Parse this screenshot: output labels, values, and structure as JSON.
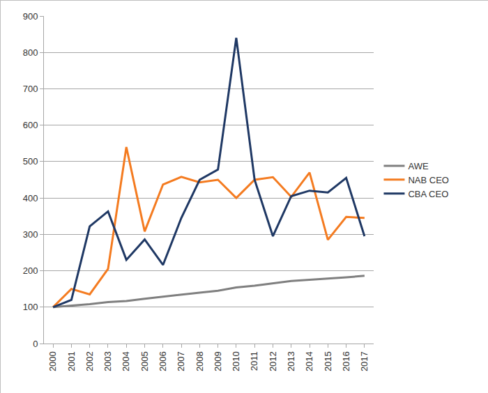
{
  "chart_data": {
    "type": "line",
    "categories": [
      "2000",
      "2001",
      "2002",
      "2003",
      "2004",
      "2005",
      "2006",
      "2007",
      "2008",
      "2009",
      "2010",
      "2011",
      "2012",
      "2013",
      "2014",
      "2015",
      "2016",
      "2017"
    ],
    "series": [
      {
        "name": "AWE",
        "color": "#7f7f7f",
        "values": [
          100,
          104,
          108,
          114,
          117,
          123,
          129,
          135,
          140,
          145,
          154,
          159,
          165,
          172,
          175,
          178,
          182,
          186
        ]
      },
      {
        "name": "NAB CEO",
        "color": "#f47b20",
        "values": [
          100,
          150,
          135,
          205,
          540,
          308,
          437,
          458,
          443,
          450,
          400,
          450,
          457,
          403,
          470,
          285,
          348,
          345
        ]
      },
      {
        "name": "CBA CEO",
        "color": "#1f3864",
        "values": [
          100,
          120,
          322,
          363,
          230,
          286,
          216,
          345,
          450,
          478,
          840,
          450,
          295,
          405,
          420,
          415,
          455,
          295
        ]
      }
    ],
    "ylim": [
      0,
      900
    ],
    "yticks": [
      0,
      100,
      200,
      300,
      400,
      500,
      600,
      700,
      800,
      900
    ],
    "grid": true,
    "legend": "right"
  }
}
